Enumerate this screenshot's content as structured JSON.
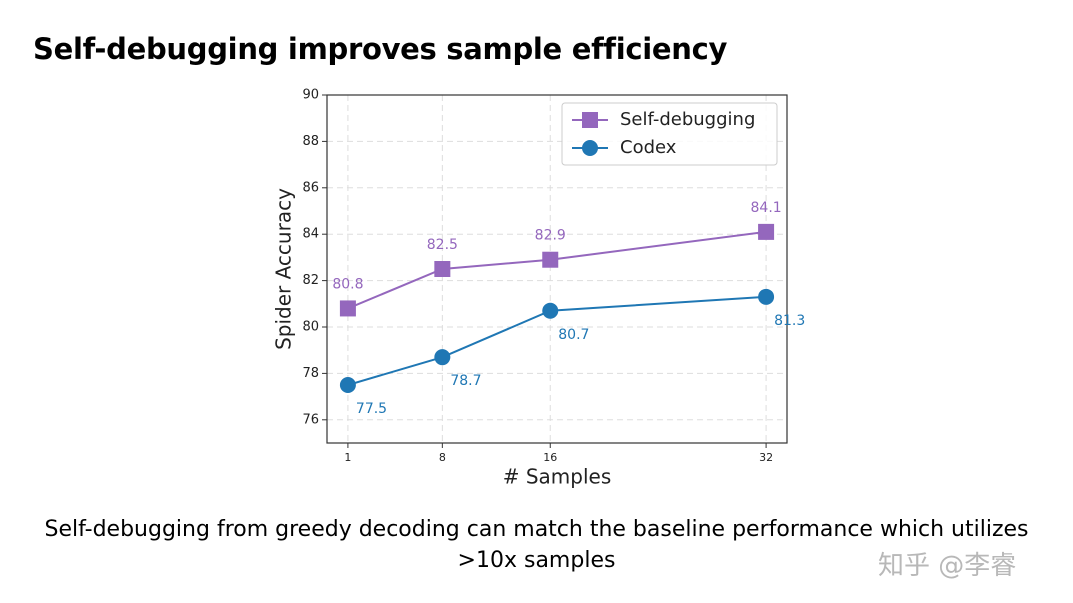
{
  "slide": {
    "title": "Self-debugging improves sample efficiency",
    "caption": "Self-debugging from greedy decoding can match the baseline performance which utilizes >10x samples",
    "watermark": "知乎 @李睿"
  },
  "chart_data": {
    "type": "line",
    "xlabel": "# Samples",
    "ylabel": "Spider Accuracy",
    "x": [
      1,
      8,
      16,
      32
    ],
    "series": [
      {
        "name": "Self-debugging",
        "color": "#9467bd",
        "marker": "square",
        "values": [
          80.8,
          82.5,
          82.9,
          84.1
        ]
      },
      {
        "name": "Codex",
        "color": "#1f77b4",
        "marker": "circle",
        "values": [
          77.5,
          78.7,
          80.7,
          81.3
        ]
      }
    ],
    "xlim": [
      -0.55,
      33.55
    ],
    "xticks": [
      1,
      8,
      16,
      32
    ],
    "ylim": [
      75,
      90
    ],
    "yticks": [
      76,
      78,
      80,
      82,
      84,
      86,
      88,
      90
    ],
    "grid": true,
    "legend": "upper right",
    "data_labels": true
  }
}
